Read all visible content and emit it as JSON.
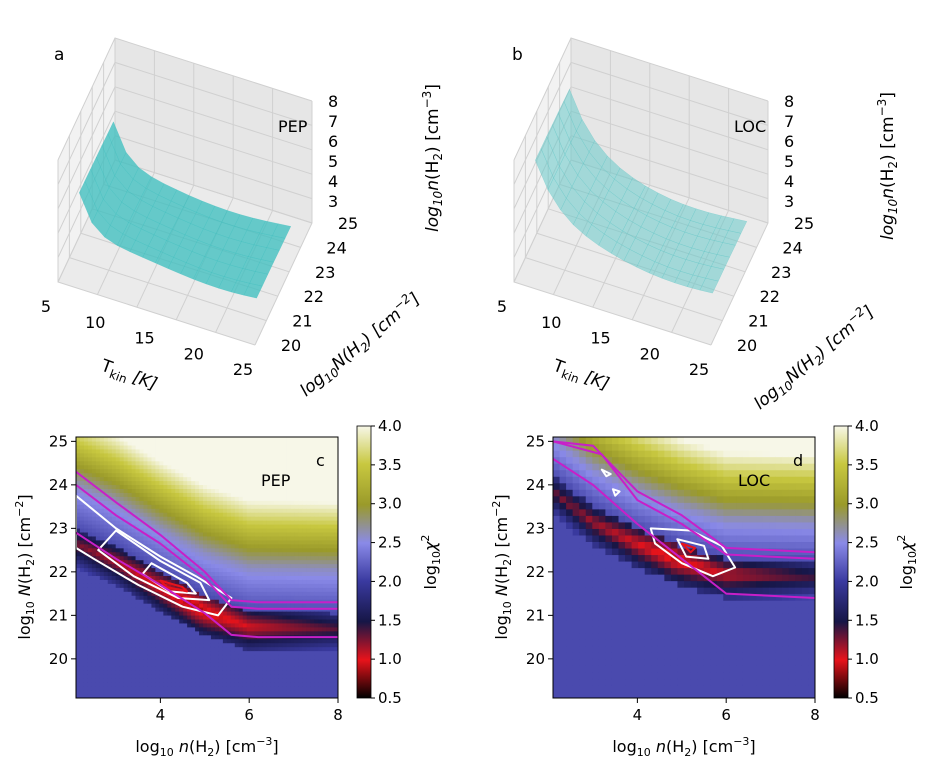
{
  "chart_data": [
    {
      "id": "a",
      "type": "surface3d",
      "panel_label": "a",
      "annotation": "PEP",
      "x_axis": {
        "label": "T_kin [K]",
        "ticks": [
          5,
          10,
          15,
          20,
          25
        ]
      },
      "y_axis": {
        "label": "log10 N(H2) [cm^-2]",
        "ticks": [
          20,
          21,
          22,
          23,
          24,
          25
        ]
      },
      "z_axis": {
        "label": "log10 n(H2) [cm^-3]",
        "ticks": [
          3,
          4,
          5,
          6,
          7,
          8
        ]
      },
      "surface_color": "#3fbfbf"
    },
    {
      "id": "b",
      "type": "surface3d",
      "panel_label": "b",
      "annotation": "LOC",
      "x_axis": {
        "label": "T_kin [K]",
        "ticks": [
          5,
          10,
          15,
          20,
          25
        ]
      },
      "y_axis": {
        "label": "log10 N(H2) [cm^-2]",
        "ticks": [
          20,
          21,
          22,
          23,
          24,
          25
        ]
      },
      "z_axis": {
        "label": "log10 n(H2) [cm^-3]",
        "ticks": [
          3,
          4,
          5,
          6,
          7,
          8
        ]
      },
      "surface_color": "#66c8c8"
    },
    {
      "id": "c",
      "type": "heatmap",
      "panel_label": "c",
      "annotation": "PEP",
      "xlabel": "log10 n(H2) [cm^-3]",
      "ylabel": "log10 N(H2) [cm^-2]",
      "xlim": [
        2.1,
        8.0
      ],
      "ylim": [
        19.1,
        25.1
      ],
      "x_ticks": [
        4,
        6,
        8
      ],
      "y_ticks": [
        20,
        21,
        22,
        23,
        24,
        25
      ],
      "colorbar": {
        "label": "log10 χ2",
        "ticks": [
          0.5,
          1.0,
          1.5,
          2.0,
          2.5,
          3.0,
          3.5,
          4.0
        ],
        "range": [
          0.5,
          4.0
        ]
      },
      "valley": [
        [
          2.1,
          23.0
        ],
        [
          3.0,
          22.6
        ],
        [
          4.0,
          22.0
        ],
        [
          5.0,
          21.45
        ],
        [
          6.0,
          21.1
        ],
        [
          8.0,
          21.05
        ]
      ],
      "high_band_offset": 1.0,
      "background_value": 2.1,
      "valley_min_value": 0.85,
      "contours": [
        {
          "color": "#ffffff",
          "points": [
            [
              2.1,
              23.75
            ],
            [
              3.0,
              23.0
            ],
            [
              4.0,
              22.35
            ],
            [
              4.8,
              21.9
            ],
            [
              5.6,
              21.4
            ],
            [
              5.3,
              21.0
            ],
            [
              4.5,
              21.2
            ],
            [
              3.5,
              21.7
            ],
            [
              2.5,
              22.3
            ],
            [
              2.1,
              22.55
            ]
          ]
        },
        {
          "color": "#ffffff",
          "points": [
            [
              3.0,
              22.95
            ],
            [
              4.0,
              22.25
            ],
            [
              4.9,
              21.75
            ],
            [
              5.1,
              21.35
            ],
            [
              4.4,
              21.4
            ],
            [
              3.4,
              21.9
            ],
            [
              2.6,
              22.5
            ]
          ]
        },
        {
          "color": "#ffffff",
          "points": [
            [
              3.8,
              22.2
            ],
            [
              4.6,
              21.75
            ],
            [
              4.8,
              21.5
            ],
            [
              4.2,
              21.55
            ],
            [
              3.6,
              21.95
            ]
          ]
        },
        {
          "color": "#e8131b",
          "points": [
            [
              4.0,
              21.8
            ],
            [
              4.5,
              21.65
            ],
            [
              4.6,
              21.55
            ],
            [
              4.15,
              21.65
            ]
          ]
        },
        {
          "color": "#c81fc8",
          "points": [
            [
              2.1,
              24.3
            ],
            [
              3.0,
              23.6
            ],
            [
              4.0,
              22.85
            ],
            [
              5.0,
              22.0
            ],
            [
              5.6,
              21.35
            ],
            [
              6.2,
              21.3
            ],
            [
              8.0,
              21.3
            ]
          ]
        },
        {
          "color": "#c81fc8",
          "points": [
            [
              2.1,
              24.0
            ],
            [
              3.0,
              23.3
            ],
            [
              4.0,
              22.65
            ],
            [
              5.0,
              21.85
            ],
            [
              5.6,
              21.2
            ],
            [
              6.2,
              21.15
            ],
            [
              8.0,
              21.15
            ]
          ]
        },
        {
          "color": "#c81fc8",
          "points": [
            [
              2.1,
              22.9
            ],
            [
              3.0,
              22.3
            ],
            [
              4.0,
              21.7
            ],
            [
              5.0,
              21.05
            ],
            [
              5.6,
              20.55
            ],
            [
              6.2,
              20.5
            ],
            [
              8.0,
              20.5
            ]
          ]
        }
      ]
    },
    {
      "id": "d",
      "type": "heatmap",
      "panel_label": "d",
      "annotation": "LOC",
      "xlabel": "log10 n(H2) [cm^-3]",
      "ylabel": "log10 N(H2) [cm^-2]",
      "xlim": [
        2.1,
        8.0
      ],
      "ylim": [
        19.1,
        25.1
      ],
      "x_ticks": [
        4,
        6,
        8
      ],
      "y_ticks": [
        20,
        21,
        22,
        23,
        24,
        25
      ],
      "colorbar": {
        "label": "log10 χ2",
        "ticks": [
          0.5,
          1.0,
          1.5,
          2.0,
          2.5,
          3.0,
          3.5,
          4.0
        ],
        "range": [
          0.5,
          4.0
        ]
      },
      "grid_cells": [
        40,
        40
      ],
      "valley": [
        [
          2.1,
          24.2
        ],
        [
          3.0,
          23.5
        ],
        [
          4.0,
          23.0
        ],
        [
          5.0,
          22.6
        ],
        [
          6.0,
          22.3
        ],
        [
          8.0,
          22.25
        ]
      ],
      "high_band_offset": 0.9,
      "background_value": 2.1,
      "valley_min_value": 0.9,
      "contours": [
        {
          "color": "#ffffff",
          "points": [
            [
              4.3,
              23.0
            ],
            [
              5.2,
              22.95
            ],
            [
              5.9,
              22.6
            ],
            [
              6.2,
              22.1
            ],
            [
              5.7,
              21.9
            ],
            [
              5.0,
              22.2
            ],
            [
              4.4,
              22.65
            ]
          ]
        },
        {
          "color": "#ffffff",
          "points": [
            [
              4.9,
              22.75
            ],
            [
              5.5,
              22.6
            ],
            [
              5.6,
              22.3
            ],
            [
              5.1,
              22.35
            ]
          ]
        },
        {
          "color": "#e8131b",
          "points": [
            [
              5.0,
              22.65
            ],
            [
              5.3,
              22.55
            ],
            [
              5.2,
              22.45
            ]
          ]
        },
        {
          "color": "#ffffff",
          "points": [
            [
              3.2,
              24.35
            ],
            [
              3.4,
              24.25
            ],
            [
              3.3,
              24.2
            ]
          ]
        },
        {
          "color": "#ffffff",
          "points": [
            [
              3.45,
              23.9
            ],
            [
              3.6,
              23.85
            ],
            [
              3.5,
              23.75
            ]
          ]
        },
        {
          "color": "#c81fc8",
          "points": [
            [
              2.1,
              25.0
            ],
            [
              3.0,
              24.9
            ],
            [
              4.0,
              23.85
            ],
            [
              5.0,
              23.3
            ],
            [
              6.0,
              22.55
            ],
            [
              8.0,
              22.45
            ]
          ]
        },
        {
          "color": "#c81fc8",
          "points": [
            [
              2.1,
              25.0
            ],
            [
              3.2,
              24.7
            ],
            [
              4.0,
              23.65
            ],
            [
              5.0,
              23.1
            ],
            [
              6.0,
              22.4
            ],
            [
              8.0,
              22.3
            ]
          ]
        },
        {
          "color": "#c81fc8",
          "points": [
            [
              2.1,
              24.6
            ],
            [
              3.0,
              24.0
            ],
            [
              4.0,
              23.1
            ],
            [
              5.0,
              22.3
            ],
            [
              6.0,
              21.5
            ],
            [
              8.0,
              21.4
            ]
          ]
        }
      ]
    }
  ]
}
